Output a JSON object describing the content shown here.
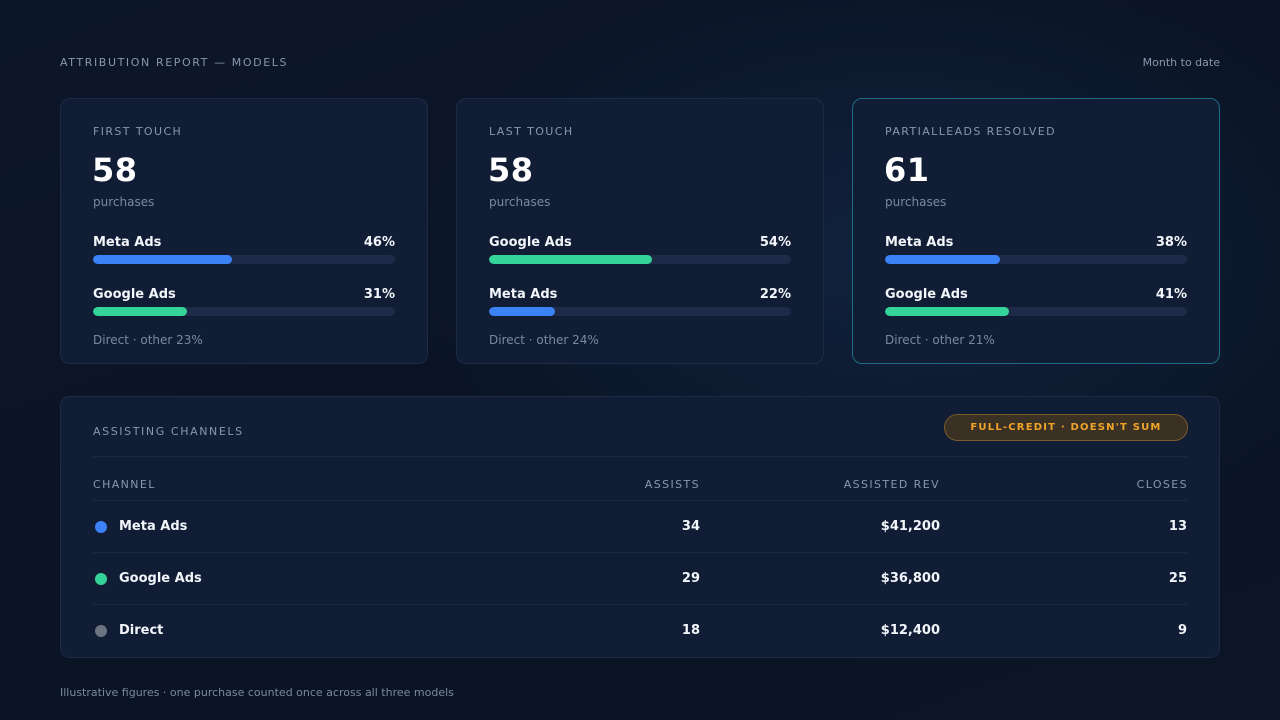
{
  "header": {
    "title": "ATTRIBUTION REPORT — MODELS",
    "range": "Month to date"
  },
  "cards": [
    {
      "title": "FIRST TOUCH",
      "value": "58",
      "unit": "purchases",
      "rows": [
        {
          "name": "Meta Ads",
          "pct": "46%",
          "fill": 0.46,
          "color": "#3b82f6"
        },
        {
          "name": "Google Ads",
          "pct": "31%",
          "fill": 0.31,
          "color": "#34d399"
        }
      ],
      "footer": "Direct · other 23%"
    },
    {
      "title": "LAST TOUCH",
      "value": "58",
      "unit": "purchases",
      "rows": [
        {
          "name": "Google Ads",
          "pct": "54%",
          "fill": 0.54,
          "color": "#34d399"
        },
        {
          "name": "Meta Ads",
          "pct": "22%",
          "fill": 0.22,
          "color": "#3b82f6"
        }
      ],
      "footer": "Direct · other 24%"
    },
    {
      "title": "PARTIALLEADS RESOLVED",
      "value": "61",
      "unit": "purchases",
      "rows": [
        {
          "name": "Meta Ads",
          "pct": "38%",
          "fill": 0.38,
          "color": "#3b82f6"
        },
        {
          "name": "Google Ads",
          "pct": "41%",
          "fill": 0.41,
          "color": "#34d399"
        }
      ],
      "footer": "Direct · other 21%"
    }
  ],
  "assisting": {
    "title": "ASSISTING CHANNELS",
    "badge": "FULL-CREDIT · DOESN'T SUM",
    "columns": {
      "channel": "CHANNEL",
      "assists": "ASSISTS",
      "revenue": "ASSISTED REV",
      "closes": "CLOSES"
    },
    "rows": [
      {
        "channel": "Meta Ads",
        "dot_color": "#3b82f6",
        "assists": "34",
        "revenue": "$41,200",
        "closes": "13"
      },
      {
        "channel": "Google Ads",
        "dot_color": "#34d399",
        "assists": "29",
        "revenue": "$36,800",
        "closes": "25"
      },
      {
        "channel": "Direct",
        "dot_color": "#6b7280",
        "assists": "18",
        "revenue": "$12,400",
        "closes": "9"
      }
    ]
  },
  "footer": "Illustrative figures · one purchase counted once across all three models"
}
